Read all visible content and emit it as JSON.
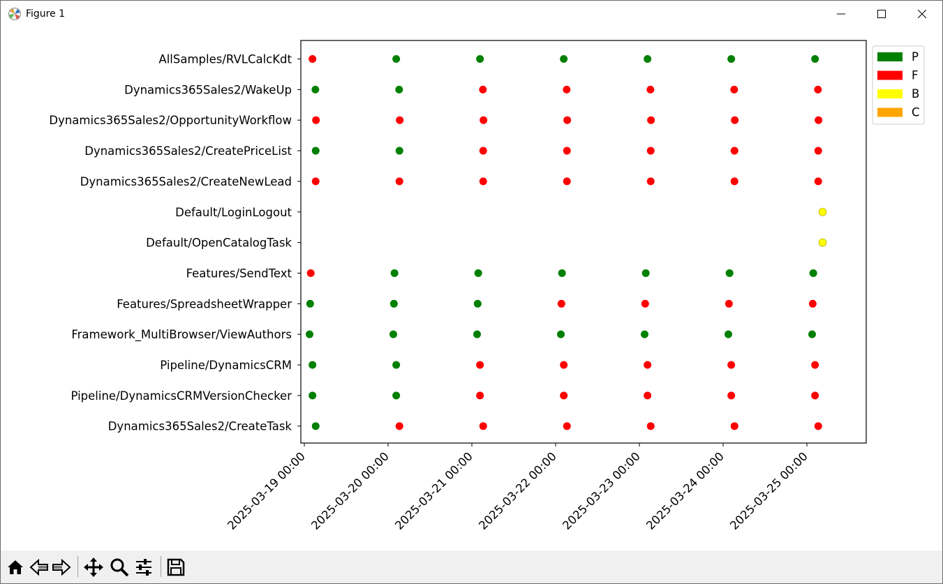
{
  "window": {
    "title": "Figure 1",
    "controls": [
      "minimize",
      "maximize",
      "close"
    ]
  },
  "toolbar": {
    "buttons": [
      {
        "name": "home-button",
        "icon": "home-icon"
      },
      {
        "name": "back-button",
        "icon": "back-arrow-icon"
      },
      {
        "name": "forward-button",
        "icon": "forward-arrow-icon"
      },
      {
        "name": "pan-button",
        "icon": "move-icon"
      },
      {
        "name": "zoom-button",
        "icon": "magnifier-icon"
      },
      {
        "name": "configure-subplots-button",
        "icon": "sliders-icon"
      },
      {
        "name": "save-button",
        "icon": "floppy-disk-icon"
      }
    ]
  },
  "chart_data": {
    "type": "scatter",
    "title": "",
    "xlabel": "",
    "ylabel": "",
    "grid": false,
    "legend_placement": "outside top-right",
    "colors": {
      "P": "#008000",
      "F": "#ff0000",
      "B": "#ffff00",
      "C": "#ffa500"
    },
    "legend": [
      {
        "label": "P",
        "color": "#008000"
      },
      {
        "label": "F",
        "color": "#ff0000"
      },
      {
        "label": "B",
        "color": "#ffff00"
      },
      {
        "label": "C",
        "color": "#ffa500"
      }
    ],
    "xlim": [
      "2025-03-18 23:00",
      "2025-03-25 17:00"
    ],
    "x_ticks": [
      "2025-03-19 00:00",
      "2025-03-20 00:00",
      "2025-03-21 00:00",
      "2025-03-22 00:00",
      "2025-03-23 00:00",
      "2025-03-24 00:00",
      "2025-03-25 00:00"
    ],
    "categories": [
      "AllSamples/RVLCalcKdt",
      "Dynamics365Sales2/WakeUp",
      "Dynamics365Sales2/OpportunityWorkflow",
      "Dynamics365Sales2/CreatePriceList",
      "Dynamics365Sales2/CreateNewLead",
      "Default/LoginLogout",
      "Default/OpenCatalogTask",
      "Features/SendText",
      "Features/SpreadsheetWrapper",
      "Framework_MultiBrowser/ViewAuthors",
      "Pipeline/DynamicsCRM",
      "Pipeline/DynamicsCRMVersionChecker",
      "Dynamics365Sales2/CreateTask"
    ],
    "series": [
      {
        "category": "AllSamples/RVLCalcKdt",
        "points": [
          {
            "x": "2025-03-19 02:20",
            "status": "F"
          },
          {
            "x": "2025-03-20 02:20",
            "status": "P"
          },
          {
            "x": "2025-03-21 02:20",
            "status": "P"
          },
          {
            "x": "2025-03-22 02:20",
            "status": "P"
          },
          {
            "x": "2025-03-23 02:20",
            "status": "P"
          },
          {
            "x": "2025-03-24 02:20",
            "status": "P"
          },
          {
            "x": "2025-03-25 02:20",
            "status": "P"
          }
        ]
      },
      {
        "category": "Dynamics365Sales2/WakeUp",
        "points": [
          {
            "x": "2025-03-19 03:10",
            "status": "P"
          },
          {
            "x": "2025-03-20 03:10",
            "status": "P"
          },
          {
            "x": "2025-03-21 03:10",
            "status": "F"
          },
          {
            "x": "2025-03-22 03:10",
            "status": "F"
          },
          {
            "x": "2025-03-23 03:10",
            "status": "F"
          },
          {
            "x": "2025-03-24 03:10",
            "status": "F"
          },
          {
            "x": "2025-03-25 03:10",
            "status": "F"
          }
        ]
      },
      {
        "category": "Dynamics365Sales2/OpportunityWorkflow",
        "points": [
          {
            "x": "2025-03-19 03:20",
            "status": "F"
          },
          {
            "x": "2025-03-20 03:20",
            "status": "F"
          },
          {
            "x": "2025-03-21 03:20",
            "status": "F"
          },
          {
            "x": "2025-03-22 03:20",
            "status": "F"
          },
          {
            "x": "2025-03-23 03:20",
            "status": "F"
          },
          {
            "x": "2025-03-24 03:20",
            "status": "F"
          },
          {
            "x": "2025-03-25 03:20",
            "status": "F"
          }
        ]
      },
      {
        "category": "Dynamics365Sales2/CreatePriceList",
        "points": [
          {
            "x": "2025-03-19 03:15",
            "status": "P"
          },
          {
            "x": "2025-03-20 03:15",
            "status": "P"
          },
          {
            "x": "2025-03-21 03:15",
            "status": "F"
          },
          {
            "x": "2025-03-22 03:15",
            "status": "F"
          },
          {
            "x": "2025-03-23 03:15",
            "status": "F"
          },
          {
            "x": "2025-03-24 03:15",
            "status": "F"
          },
          {
            "x": "2025-03-25 03:15",
            "status": "F"
          }
        ]
      },
      {
        "category": "Dynamics365Sales2/CreateNewLead",
        "points": [
          {
            "x": "2025-03-19 03:15",
            "status": "F"
          },
          {
            "x": "2025-03-20 03:15",
            "status": "F"
          },
          {
            "x": "2025-03-21 03:15",
            "status": "F"
          },
          {
            "x": "2025-03-22 03:15",
            "status": "F"
          },
          {
            "x": "2025-03-23 03:15",
            "status": "F"
          },
          {
            "x": "2025-03-24 03:15",
            "status": "F"
          },
          {
            "x": "2025-03-25 03:15",
            "status": "F"
          }
        ]
      },
      {
        "category": "Default/LoginLogout",
        "points": [
          {
            "x": "2025-03-25 04:30",
            "status": "B"
          }
        ]
      },
      {
        "category": "Default/OpenCatalogTask",
        "points": [
          {
            "x": "2025-03-25 04:30",
            "status": "B"
          }
        ]
      },
      {
        "category": "Features/SendText",
        "points": [
          {
            "x": "2025-03-19 01:50",
            "status": "F"
          },
          {
            "x": "2025-03-20 01:50",
            "status": "P"
          },
          {
            "x": "2025-03-21 01:50",
            "status": "P"
          },
          {
            "x": "2025-03-22 01:50",
            "status": "P"
          },
          {
            "x": "2025-03-23 01:50",
            "status": "P"
          },
          {
            "x": "2025-03-24 01:50",
            "status": "P"
          },
          {
            "x": "2025-03-25 01:50",
            "status": "P"
          }
        ]
      },
      {
        "category": "Features/SpreadsheetWrapper",
        "points": [
          {
            "x": "2025-03-19 01:40",
            "status": "P"
          },
          {
            "x": "2025-03-20 01:40",
            "status": "P"
          },
          {
            "x": "2025-03-21 01:40",
            "status": "P"
          },
          {
            "x": "2025-03-22 01:40",
            "status": "F"
          },
          {
            "x": "2025-03-23 01:40",
            "status": "F"
          },
          {
            "x": "2025-03-24 01:40",
            "status": "F"
          },
          {
            "x": "2025-03-25 01:40",
            "status": "F"
          }
        ]
      },
      {
        "category": "Framework_MultiBrowser/ViewAuthors",
        "points": [
          {
            "x": "2025-03-19 01:30",
            "status": "P"
          },
          {
            "x": "2025-03-20 01:30",
            "status": "P"
          },
          {
            "x": "2025-03-21 01:30",
            "status": "P"
          },
          {
            "x": "2025-03-22 01:30",
            "status": "P"
          },
          {
            "x": "2025-03-23 01:30",
            "status": "P"
          },
          {
            "x": "2025-03-24 01:30",
            "status": "P"
          },
          {
            "x": "2025-03-25 01:30",
            "status": "P"
          }
        ]
      },
      {
        "category": "Pipeline/DynamicsCRM",
        "points": [
          {
            "x": "2025-03-19 02:20",
            "status": "P"
          },
          {
            "x": "2025-03-20 02:20",
            "status": "P"
          },
          {
            "x": "2025-03-21 02:20",
            "status": "F"
          },
          {
            "x": "2025-03-22 02:20",
            "status": "F"
          },
          {
            "x": "2025-03-23 02:20",
            "status": "F"
          },
          {
            "x": "2025-03-24 02:20",
            "status": "F"
          },
          {
            "x": "2025-03-25 02:20",
            "status": "F"
          }
        ]
      },
      {
        "category": "Pipeline/DynamicsCRMVersionChecker",
        "points": [
          {
            "x": "2025-03-19 02:20",
            "status": "P"
          },
          {
            "x": "2025-03-20 02:20",
            "status": "P"
          },
          {
            "x": "2025-03-21 02:20",
            "status": "F"
          },
          {
            "x": "2025-03-22 02:20",
            "status": "F"
          },
          {
            "x": "2025-03-23 02:20",
            "status": "F"
          },
          {
            "x": "2025-03-24 02:20",
            "status": "F"
          },
          {
            "x": "2025-03-25 02:20",
            "status": "F"
          }
        ]
      },
      {
        "category": "Dynamics365Sales2/CreateTask",
        "points": [
          {
            "x": "2025-03-19 03:15",
            "status": "P"
          },
          {
            "x": "2025-03-20 03:15",
            "status": "F"
          },
          {
            "x": "2025-03-21 03:15",
            "status": "F"
          },
          {
            "x": "2025-03-22 03:15",
            "status": "F"
          },
          {
            "x": "2025-03-23 03:15",
            "status": "F"
          },
          {
            "x": "2025-03-24 03:15",
            "status": "F"
          },
          {
            "x": "2025-03-25 03:15",
            "status": "F"
          }
        ]
      }
    ]
  }
}
